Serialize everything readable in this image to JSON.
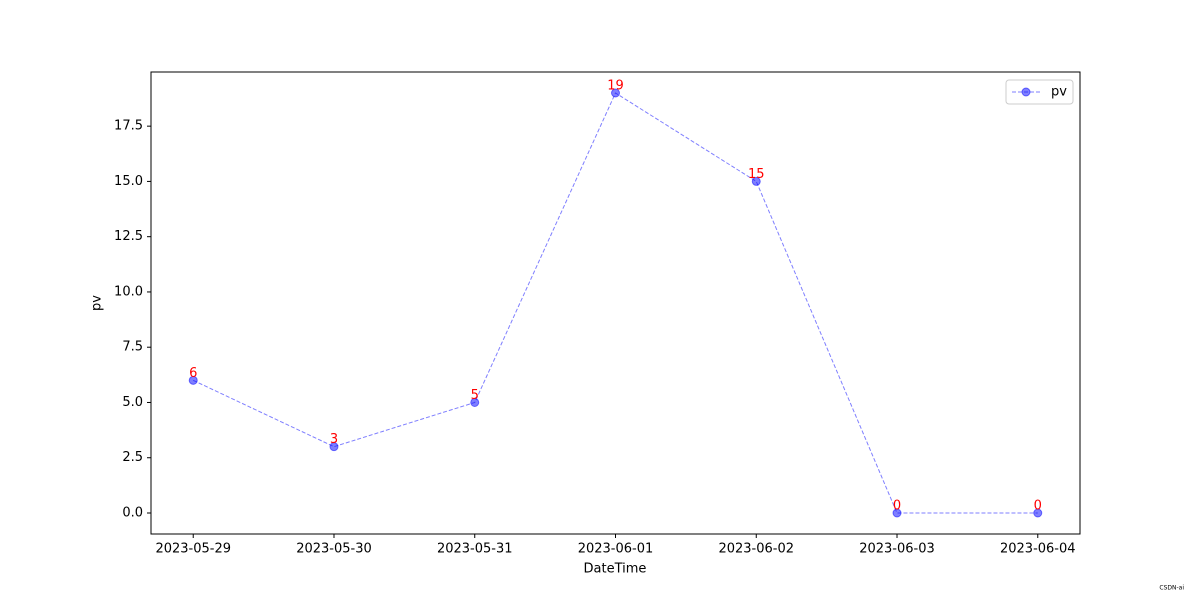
{
  "chart_data": {
    "type": "line",
    "x_label": "DateTime",
    "y_label": "pv",
    "categories": [
      "2023-05-29",
      "2023-05-30",
      "2023-05-31",
      "2023-06-01",
      "2023-06-02",
      "2023-06-03",
      "2023-06-04"
    ],
    "series": [
      {
        "name": "pv",
        "color": "#0000ff",
        "values": [
          6,
          3,
          5,
          19,
          15,
          0,
          0
        ]
      }
    ],
    "value_label_color": "#ff0000",
    "ylim": [
      -0.95,
      19.95
    ],
    "yticks": [
      {
        "value": 0,
        "label": "0.0"
      },
      {
        "value": 2.5,
        "label": "2.5"
      },
      {
        "value": 5,
        "label": "5.0"
      },
      {
        "value": 7.5,
        "label": "7.5"
      },
      {
        "value": 10,
        "label": "10.0"
      },
      {
        "value": 12.5,
        "label": "12.5"
      },
      {
        "value": 15,
        "label": "15.0"
      },
      {
        "value": 17.5,
        "label": "17.5"
      }
    ],
    "legend": "upper right",
    "watermark": "CSDN-ai"
  }
}
